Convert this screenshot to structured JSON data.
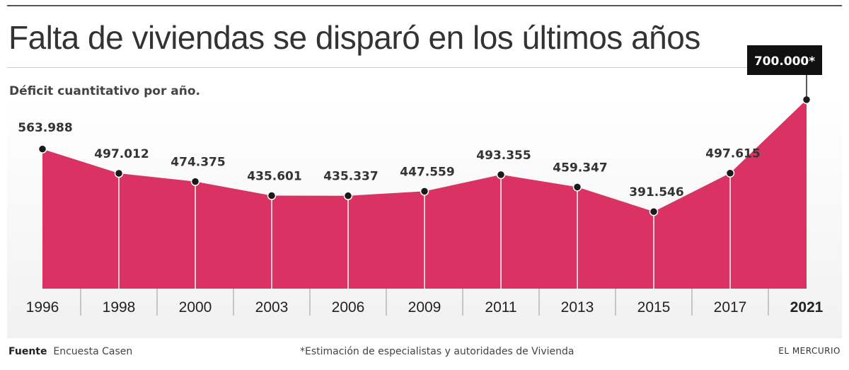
{
  "title": "Falta de viviendas se disparó en los últimos años",
  "subtitle": "Déficit cuantitativo por año.",
  "footer": {
    "source_label": "Fuente",
    "source_value": "Encuesta Casen",
    "note": "*Estimación de especialistas y autoridades de Vivienda",
    "brand": "EL MERCURIO"
  },
  "colors": {
    "area": "#d93263",
    "background": "#ffffff",
    "highlight_label_bg": "#111111"
  },
  "chart_data": {
    "type": "area",
    "title": "Falta de viviendas se disparó en los últimos años",
    "subtitle": "Déficit cuantitativo por año.",
    "categories": [
      "1996",
      "1998",
      "2000",
      "2003",
      "2006",
      "2009",
      "2011",
      "2013",
      "2015",
      "2017",
      "2021"
    ],
    "values": [
      563988,
      497012,
      474375,
      435601,
      435337,
      447559,
      493355,
      459347,
      391546,
      497615,
      700000
    ],
    "labels": [
      "563.988",
      "497.012",
      "474.375",
      "435.601",
      "435.337",
      "447.559",
      "493.355",
      "459.347",
      "391.546",
      "497.615",
      "700.000*"
    ],
    "highlight_index": 10,
    "xlabel": "",
    "ylabel": "",
    "ylim": [
      0,
      700000
    ],
    "grid": false
  }
}
